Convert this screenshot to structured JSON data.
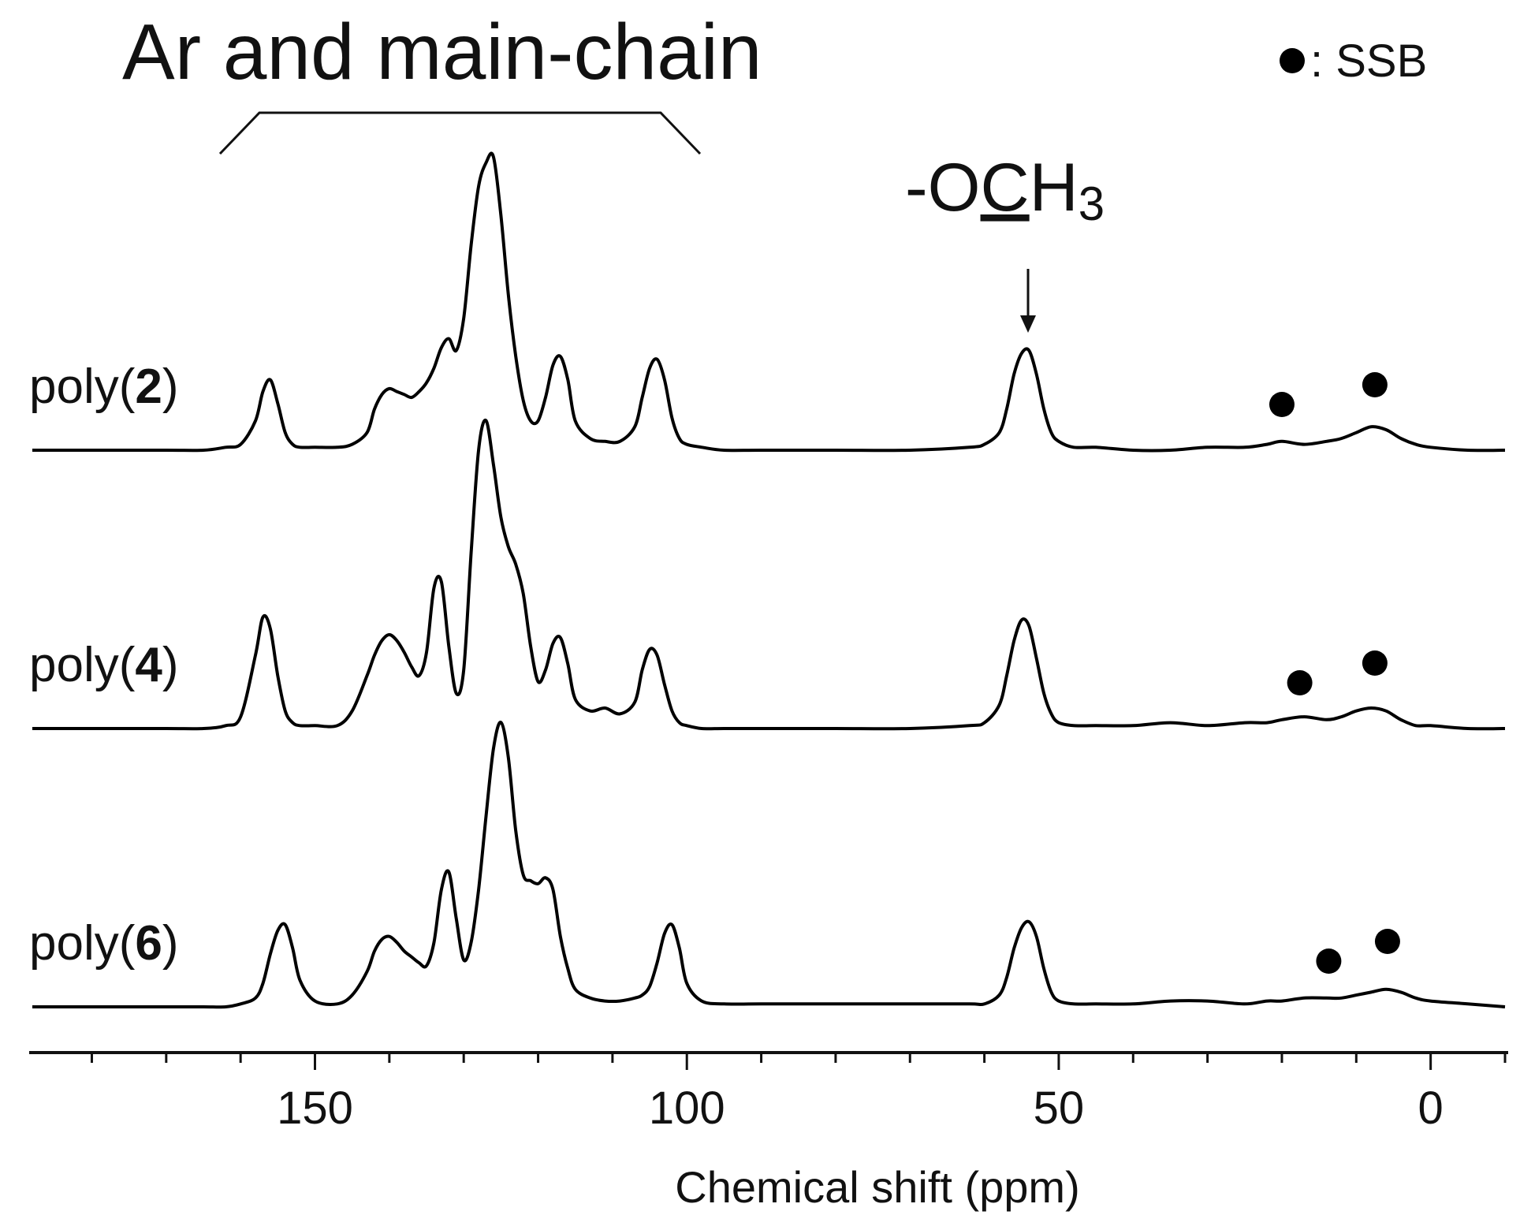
{
  "chart_data": {
    "type": "line",
    "title": "Ar and main-chain",
    "annotation": {
      "prefix": "-O",
      "underlined": "C",
      "suffix": "H",
      "subscript": "3"
    },
    "legend_text": ": SSB",
    "x_label": "Chemical shift (ppm)",
    "xlim": [
      188,
      -10
    ],
    "xticks": [
      150,
      100,
      50,
      0
    ],
    "minor_xticks": [
      180,
      170,
      160,
      140,
      130,
      120,
      110,
      90,
      80,
      70,
      60,
      40,
      30,
      20,
      10,
      -10
    ],
    "x": [
      188,
      180,
      170,
      165,
      162,
      160,
      158,
      157,
      156,
      155,
      154,
      153,
      152,
      150,
      147,
      145,
      143,
      142,
      141,
      140,
      139,
      138,
      137,
      136,
      135,
      134,
      133,
      132,
      131,
      130,
      129,
      128,
      127,
      126,
      125,
      124,
      123,
      122,
      121,
      120,
      119,
      118,
      117,
      116,
      115,
      113,
      111,
      109,
      107,
      106,
      105,
      104,
      103,
      102,
      101,
      100,
      98,
      95,
      90,
      80,
      70,
      62,
      60,
      58,
      57,
      56,
      55,
      54,
      53,
      52,
      51,
      50,
      48,
      45,
      40,
      35,
      30,
      25,
      22,
      20,
      17,
      14,
      12,
      10,
      8,
      6,
      4,
      2,
      0,
      -5,
      -10
    ],
    "series": [
      {
        "name": "poly(2)",
        "color": "#000000",
        "ssb": [
          20,
          7.5
        ],
        "values": [
          0,
          0,
          0,
          0,
          1,
          2,
          10,
          20,
          24,
          16,
          6,
          2,
          1,
          1,
          1,
          2,
          6,
          14,
          19,
          21,
          20,
          19,
          18,
          20,
          23,
          28,
          35,
          38,
          34,
          45,
          70,
          90,
          98,
          100,
          80,
          53,
          32,
          17,
          10,
          10,
          18,
          29,
          32,
          24,
          10,
          4,
          3,
          3,
          8,
          18,
          28,
          31,
          24,
          11,
          4,
          2,
          1,
          0,
          0,
          0,
          0,
          1,
          2,
          6,
          14,
          26,
          33,
          34,
          26,
          14,
          6,
          3,
          1,
          1,
          0,
          0,
          1,
          1,
          2,
          3,
          2,
          3,
          4,
          6,
          8,
          7,
          4,
          2,
          1,
          0,
          0
        ]
      },
      {
        "name": "poly(4)",
        "color": "#000000",
        "ssb": [
          17.6,
          7.5
        ],
        "values": [
          0,
          0,
          0,
          0,
          1,
          4,
          25,
          38,
          34,
          18,
          6,
          2,
          1,
          1,
          1,
          6,
          18,
          25,
          30,
          32,
          30,
          26,
          21,
          18,
          26,
          48,
          50,
          28,
          12,
          20,
          60,
          95,
          105,
          90,
          72,
          62,
          56,
          46,
          28,
          16,
          20,
          29,
          31,
          22,
          10,
          6,
          7,
          5,
          9,
          20,
          27,
          25,
          15,
          6,
          2,
          1,
          0,
          0,
          0,
          0,
          0,
          1,
          2,
          8,
          18,
          30,
          37,
          35,
          24,
          12,
          5,
          2,
          1,
          1,
          1,
          2,
          1,
          2,
          2,
          3,
          4,
          3,
          4,
          6,
          7,
          6,
          3,
          1,
          1,
          0,
          0
        ]
      },
      {
        "name": "poly(6)",
        "color": "#000000",
        "ssb": [
          13.7,
          5.8
        ],
        "values": [
          0,
          0,
          0,
          0,
          0,
          1,
          3,
          8,
          18,
          26,
          28,
          20,
          9,
          2,
          1,
          4,
          12,
          19,
          23,
          24,
          22,
          19,
          17,
          15,
          14,
          22,
          40,
          46,
          30,
          16,
          22,
          40,
          65,
          88,
          97,
          85,
          60,
          45,
          43,
          42,
          44,
          40,
          24,
          13,
          6,
          3,
          2,
          2,
          3,
          4,
          7,
          15,
          25,
          28,
          20,
          8,
          2,
          1,
          1,
          1,
          1,
          1,
          1,
          4,
          10,
          20,
          27,
          29,
          24,
          13,
          5,
          2,
          1,
          1,
          1,
          2,
          2,
          1,
          2,
          2,
          3,
          3,
          3,
          4,
          5,
          6,
          5,
          3,
          2,
          1,
          0
        ]
      }
    ]
  }
}
